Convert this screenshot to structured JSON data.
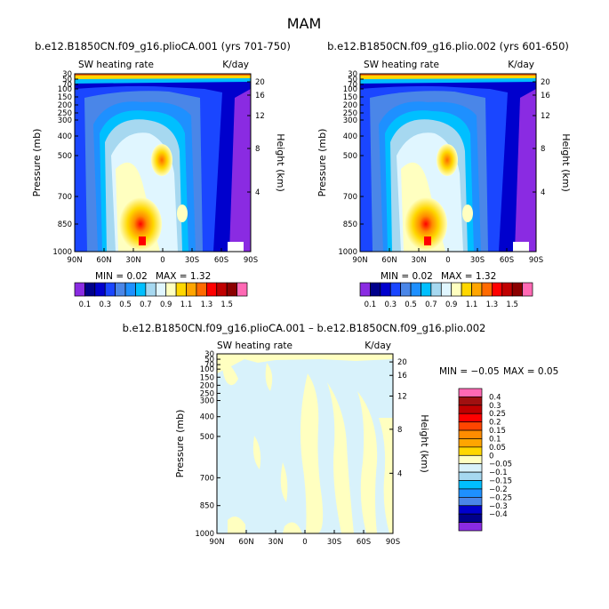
{
  "figure": {
    "title": "MAM"
  },
  "chart_data": [
    {
      "type": "heatmap",
      "title": "b.e12.B1850CN.f09_g16.plioCA.001 (yrs 701-750)",
      "variable": "SW heating rate",
      "units": "K/day",
      "xlabel": "",
      "ylabel": "Pressure (mb)",
      "y2label": "Height (km)",
      "x_ticks": [
        "90N",
        "60N",
        "30N",
        "0",
        "30S",
        "60S",
        "90S"
      ],
      "y_ticks": [
        "30",
        "50",
        "70",
        "100",
        "150",
        "200",
        "250",
        "300",
        "400",
        "500",
        "700",
        "850",
        "1000"
      ],
      "y2_ticks": [
        "20",
        "16",
        "12",
        "8",
        "4"
      ],
      "ylim": [
        1000,
        30
      ],
      "min_label": "MIN =   0.02",
      "max_label": "MAX =   1.32",
      "min": 0.02,
      "max": 1.32,
      "colorbar": {
        "levels": [
          0.1,
          0.2,
          0.3,
          0.4,
          0.5,
          0.6,
          0.7,
          0.8,
          0.9,
          1.0,
          1.1,
          1.2,
          1.3,
          1.4,
          1.5
        ],
        "labels": [
          "0.1",
          "0.3",
          "0.5",
          "0.7",
          "0.9",
          "1.1",
          "1.3",
          "1.5"
        ],
        "colors": [
          "#8a2be2",
          "#00008b",
          "#0000cd",
          "#1a46ff",
          "#4a86e8",
          "#1e90ff",
          "#00bfff",
          "#a6d8f0",
          "#e0f6ff",
          "#ffffc0",
          "#ffd700",
          "#ffa500",
          "#ff6a00",
          "#ff0000",
          "#c00000",
          "#8b0000",
          "#ff69b4"
        ]
      }
    },
    {
      "type": "heatmap",
      "title": "b.e12.B1850CN.f09_g16.plio.002 (yrs 601-650)",
      "variable": "SW heating rate",
      "units": "K/day",
      "xlabel": "",
      "ylabel": "Pressure (mb)",
      "y2label": "Height (km)",
      "x_ticks": [
        "90N",
        "60N",
        "30N",
        "0",
        "30S",
        "60S",
        "90S"
      ],
      "y_ticks": [
        "30",
        "50",
        "70",
        "100",
        "150",
        "200",
        "250",
        "300",
        "400",
        "500",
        "700",
        "850",
        "1000"
      ],
      "y2_ticks": [
        "20",
        "16",
        "12",
        "8",
        "4"
      ],
      "ylim": [
        1000,
        30
      ],
      "min_label": "MIN =   0.02",
      "max_label": "MAX =   1.32",
      "min": 0.02,
      "max": 1.32,
      "colorbar": {
        "levels": [
          0.1,
          0.2,
          0.3,
          0.4,
          0.5,
          0.6,
          0.7,
          0.8,
          0.9,
          1.0,
          1.1,
          1.2,
          1.3,
          1.4,
          1.5
        ],
        "labels": [
          "0.1",
          "0.3",
          "0.5",
          "0.7",
          "0.9",
          "1.1",
          "1.3",
          "1.5"
        ],
        "colors": [
          "#8a2be2",
          "#00008b",
          "#0000cd",
          "#1a46ff",
          "#4a86e8",
          "#1e90ff",
          "#00bfff",
          "#a6d8f0",
          "#e0f6ff",
          "#ffffc0",
          "#ffd700",
          "#ffa500",
          "#ff6a00",
          "#ff0000",
          "#c00000",
          "#8b0000",
          "#ff69b4"
        ]
      }
    },
    {
      "type": "heatmap",
      "title": "b.e12.B1850CN.f09_g16.plioCA.001 – b.e12.B1850CN.f09_g16.plio.002",
      "variable": "SW heating rate",
      "units": "K/day",
      "xlabel": "",
      "ylabel": "Pressure (mb)",
      "y2label": "Height (km)",
      "x_ticks": [
        "90N",
        "60N",
        "30N",
        "0",
        "30S",
        "60S",
        "90S"
      ],
      "y_ticks": [
        "30",
        "50",
        "70",
        "100",
        "150",
        "200",
        "250",
        "300",
        "400",
        "500",
        "700",
        "850",
        "1000"
      ],
      "y2_ticks": [
        "20",
        "16",
        "12",
        "8",
        "4"
      ],
      "ylim": [
        1000,
        30
      ],
      "min_label": "MIN =  −0.05",
      "max_label": "MAX =   0.05",
      "min": -0.05,
      "max": 0.05,
      "colorbar": {
        "levels": [
          -0.4,
          -0.3,
          -0.25,
          -0.2,
          -0.15,
          -0.1,
          -0.05,
          0,
          0.05,
          0.1,
          0.15,
          0.2,
          0.25,
          0.3,
          0.4
        ],
        "labels": [
          "0.4",
          "0.3",
          "0.25",
          "0.2",
          "0.15",
          "0.1",
          "0.05",
          "0",
          "−0.05",
          "−0.1",
          "−0.15",
          "−0.2",
          "−0.25",
          "−0.3",
          "−0.4"
        ],
        "colors": [
          "#ff69b4",
          "#a01010",
          "#c00000",
          "#ff0000",
          "#ff4500",
          "#ff8c00",
          "#ffa500",
          "#ffd700",
          "#ffffc0",
          "#d8f2fb",
          "#a6d8f0",
          "#00bfff",
          "#1e90ff",
          "#4a86e8",
          "#0000cd",
          "#00008b",
          "#8a2be2"
        ]
      }
    }
  ]
}
